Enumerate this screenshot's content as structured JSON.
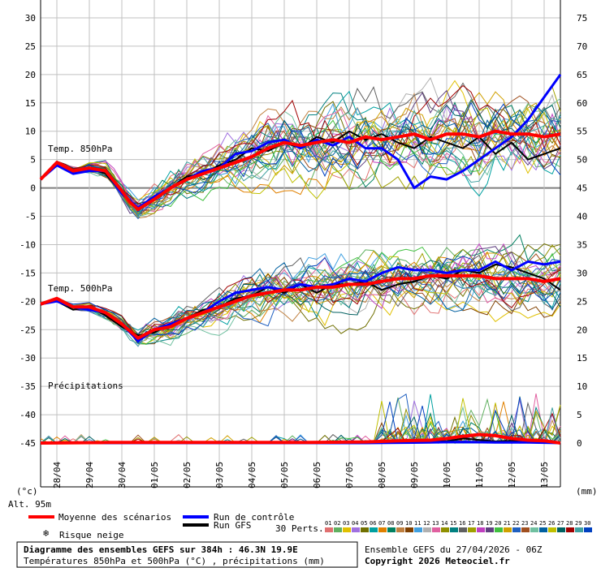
{
  "chart_data": {
    "type": "line",
    "title": "Diagramme des ensembles GEFS sur 384h : 46.3N 19.9E",
    "subtitle": "Températures 850hPa et 500hPa (°C) , précipitations (mm)",
    "run_info": "Ensemble GEFS du 27/04/2026 - 06Z",
    "copyright": "Copyright 2026 Meteociel.fr",
    "altitude": "Alt. 95m",
    "left_unit": "(°c)",
    "right_unit": "(mm)",
    "left_axis": {
      "ylim": [
        -45,
        30
      ],
      "ticks": [
        30,
        25,
        20,
        15,
        10,
        5,
        0,
        -5,
        -10,
        -15,
        -20,
        -25,
        -30,
        -35,
        -40,
        -45
      ]
    },
    "right_axis": {
      "ticks": [
        75,
        70,
        65,
        60,
        55,
        50,
        45,
        40,
        35,
        30,
        25,
        20,
        15,
        10,
        5,
        0
      ]
    },
    "x_axis": {
      "range": [
        0,
        384
      ],
      "ticks": [
        "28/04",
        "29/04",
        "30/04",
        "01/05",
        "02/05",
        "03/05",
        "04/05",
        "05/05",
        "06/05",
        "07/05",
        "08/05",
        "09/05",
        "10/05",
        "11/05",
        "12/05",
        "13/05"
      ]
    },
    "section_labels": {
      "t850": "Temp. 850hPa",
      "t500": "Temp. 500hPa",
      "precip": "Précipitations"
    },
    "legend": {
      "mean": "Moyenne des scénarios",
      "control": "Run de contrôle",
      "gfs": "Run GFS",
      "snow": "Risque neige",
      "perts_label": "30 Perts.",
      "pert_numbers": [
        "01",
        "02",
        "03",
        "04",
        "05",
        "06",
        "07",
        "08",
        "09",
        "10",
        "11",
        "12",
        "13",
        "14",
        "15",
        "16",
        "17",
        "18",
        "19",
        "20",
        "21",
        "22",
        "23",
        "24",
        "25",
        "26",
        "27",
        "28",
        "29",
        "30"
      ]
    },
    "colors": {
      "mean": "#ff0000",
      "control": "#0000ff",
      "gfs": "#000000",
      "grid": "#c0c0c0",
      "zero": "#808080",
      "perts": [
        "#e07070",
        "#60b060",
        "#e0c000",
        "#a070e0",
        "#707000",
        "#00a0a0",
        "#e08000",
        "#008060",
        "#c08040",
        "#804000",
        "#40a0e0",
        "#b0b0b0",
        "#e060a0",
        "#909000",
        "#008080",
        "#606060",
        "#a0a000",
        "#c040c0",
        "#604080",
        "#40c040",
        "#d0a000",
        "#2060c0",
        "#a05020",
        "#70c0a0",
        "#0060a0",
        "#c0c000",
        "#006060",
        "#a00000",
        "#40a0a0",
        "#0040c0"
      ]
    },
    "t850": {
      "mean": [
        [
          0,
          1.5
        ],
        [
          12,
          4.5
        ],
        [
          24,
          3
        ],
        [
          36,
          3.5
        ],
        [
          48,
          3
        ],
        [
          60,
          -0.5
        ],
        [
          66,
          -2.5
        ],
        [
          72,
          -3.8
        ],
        [
          84,
          -2
        ],
        [
          96,
          0
        ],
        [
          108,
          1.5
        ],
        [
          120,
          2.5
        ],
        [
          132,
          3.5
        ],
        [
          144,
          4.5
        ],
        [
          156,
          5.5
        ],
        [
          168,
          7
        ],
        [
          180,
          8
        ],
        [
          192,
          7.5
        ],
        [
          204,
          8
        ],
        [
          216,
          8.5
        ],
        [
          228,
          8
        ],
        [
          240,
          9
        ],
        [
          252,
          8.5
        ],
        [
          264,
          9
        ],
        [
          276,
          9.5
        ],
        [
          288,
          8.5
        ],
        [
          300,
          9.5
        ],
        [
          312,
          9.5
        ],
        [
          324,
          9
        ],
        [
          336,
          10
        ],
        [
          348,
          9.5
        ],
        [
          360,
          9.5
        ],
        [
          372,
          9
        ],
        [
          384,
          9.5
        ]
      ],
      "control": [
        [
          0,
          1.5
        ],
        [
          12,
          4
        ],
        [
          24,
          2.5
        ],
        [
          36,
          3
        ],
        [
          48,
          3
        ],
        [
          60,
          -1
        ],
        [
          72,
          -3.5
        ],
        [
          84,
          -1.5
        ],
        [
          96,
          0
        ],
        [
          108,
          1.5
        ],
        [
          120,
          3
        ],
        [
          132,
          3.5
        ],
        [
          144,
          6
        ],
        [
          156,
          6.5
        ],
        [
          168,
          8
        ],
        [
          180,
          8.5
        ],
        [
          192,
          7
        ],
        [
          204,
          8.5
        ],
        [
          216,
          7.5
        ],
        [
          228,
          9
        ],
        [
          240,
          7
        ],
        [
          252,
          7
        ],
        [
          264,
          5
        ],
        [
          276,
          0
        ],
        [
          288,
          2
        ],
        [
          300,
          1.5
        ],
        [
          312,
          3
        ],
        [
          324,
          5
        ],
        [
          336,
          7
        ],
        [
          348,
          9
        ],
        [
          360,
          12
        ],
        [
          372,
          16
        ],
        [
          384,
          20
        ]
      ],
      "gfs": [
        [
          0,
          1.5
        ],
        [
          12,
          4
        ],
        [
          24,
          3
        ],
        [
          36,
          3.5
        ],
        [
          48,
          2.5
        ],
        [
          60,
          -1
        ],
        [
          72,
          -3.5
        ],
        [
          84,
          -2
        ],
        [
          96,
          0
        ],
        [
          108,
          2
        ],
        [
          120,
          2.5
        ],
        [
          132,
          4
        ],
        [
          144,
          5
        ],
        [
          156,
          7
        ],
        [
          168,
          6.5
        ],
        [
          180,
          8
        ],
        [
          192,
          7
        ],
        [
          204,
          9
        ],
        [
          216,
          8
        ],
        [
          228,
          10
        ],
        [
          240,
          8.5
        ],
        [
          252,
          9.5
        ],
        [
          264,
          8
        ],
        [
          276,
          7
        ],
        [
          288,
          9
        ],
        [
          300,
          8
        ],
        [
          312,
          7
        ],
        [
          324,
          9
        ],
        [
          336,
          6
        ],
        [
          348,
          8
        ],
        [
          360,
          5
        ],
        [
          372,
          6
        ],
        [
          384,
          7
        ]
      ]
    },
    "t500": {
      "mean": [
        [
          0,
          -20.5
        ],
        [
          12,
          -19.5
        ],
        [
          24,
          -21
        ],
        [
          36,
          -21
        ],
        [
          48,
          -22
        ],
        [
          60,
          -24
        ],
        [
          72,
          -26.5
        ],
        [
          84,
          -25
        ],
        [
          96,
          -24.5
        ],
        [
          108,
          -23
        ],
        [
          120,
          -22
        ],
        [
          132,
          -21
        ],
        [
          144,
          -20
        ],
        [
          156,
          -19
        ],
        [
          168,
          -18.5
        ],
        [
          180,
          -18
        ],
        [
          192,
          -18
        ],
        [
          204,
          -17.5
        ],
        [
          216,
          -17.5
        ],
        [
          228,
          -17
        ],
        [
          240,
          -17
        ],
        [
          252,
          -16.5
        ],
        [
          264,
          -16
        ],
        [
          276,
          -16
        ],
        [
          288,
          -15.5
        ],
        [
          300,
          -15.5
        ],
        [
          312,
          -15.5
        ],
        [
          324,
          -15.5
        ],
        [
          336,
          -16
        ],
        [
          348,
          -16
        ],
        [
          360,
          -16
        ],
        [
          372,
          -16.5
        ],
        [
          384,
          -16
        ]
      ],
      "control": [
        [
          0,
          -20.5
        ],
        [
          12,
          -20
        ],
        [
          24,
          -21
        ],
        [
          36,
          -21.5
        ],
        [
          48,
          -22
        ],
        [
          60,
          -24
        ],
        [
          72,
          -27
        ],
        [
          84,
          -25
        ],
        [
          96,
          -24
        ],
        [
          108,
          -23
        ],
        [
          120,
          -22
        ],
        [
          132,
          -20
        ],
        [
          144,
          -18.5
        ],
        [
          156,
          -18
        ],
        [
          168,
          -17.5
        ],
        [
          180,
          -18
        ],
        [
          192,
          -17
        ],
        [
          204,
          -17.5
        ],
        [
          216,
          -17
        ],
        [
          228,
          -16
        ],
        [
          240,
          -16.5
        ],
        [
          252,
          -15
        ],
        [
          264,
          -14
        ],
        [
          276,
          -14.5
        ],
        [
          288,
          -14.5
        ],
        [
          300,
          -15
        ],
        [
          312,
          -14.5
        ],
        [
          324,
          -14.5
        ],
        [
          336,
          -13
        ],
        [
          348,
          -14.5
        ],
        [
          360,
          -13
        ],
        [
          372,
          -13.5
        ],
        [
          384,
          -13
        ]
      ],
      "gfs": [
        [
          0,
          -20.5
        ],
        [
          12,
          -20
        ],
        [
          24,
          -21.5
        ],
        [
          36,
          -21
        ],
        [
          48,
          -22.5
        ],
        [
          60,
          -24.5
        ],
        [
          72,
          -26
        ],
        [
          84,
          -25.5
        ],
        [
          96,
          -24
        ],
        [
          108,
          -23
        ],
        [
          120,
          -21.5
        ],
        [
          132,
          -21
        ],
        [
          144,
          -19.5
        ],
        [
          156,
          -19
        ],
        [
          168,
          -17.5
        ],
        [
          180,
          -18.5
        ],
        [
          192,
          -17
        ],
        [
          204,
          -18.5
        ],
        [
          216,
          -17
        ],
        [
          228,
          -17
        ],
        [
          240,
          -16.5
        ],
        [
          252,
          -18
        ],
        [
          264,
          -17
        ],
        [
          276,
          -16.5
        ],
        [
          288,
          -15.5
        ],
        [
          300,
          -16
        ],
        [
          312,
          -14.5
        ],
        [
          324,
          -15
        ],
        [
          336,
          -13.5
        ],
        [
          348,
          -14
        ],
        [
          360,
          -15
        ],
        [
          372,
          -16
        ],
        [
          384,
          -18
        ]
      ]
    },
    "precip_mm": {
      "mean": [
        [
          0,
          0
        ],
        [
          48,
          0.1
        ],
        [
          96,
          0.1
        ],
        [
          144,
          0.1
        ],
        [
          192,
          0.1
        ],
        [
          240,
          0.2
        ],
        [
          264,
          0.4
        ],
        [
          288,
          0.5
        ],
        [
          300,
          0.8
        ],
        [
          312,
          1.2
        ],
        [
          324,
          1.5
        ],
        [
          336,
          1.3
        ],
        [
          348,
          0.8
        ],
        [
          360,
          0.5
        ],
        [
          372,
          0.4
        ],
        [
          384,
          0
        ]
      ],
      "control": [
        [
          0,
          0
        ],
        [
          96,
          0
        ],
        [
          192,
          0
        ],
        [
          240,
          0
        ],
        [
          288,
          0.1
        ],
        [
          312,
          0.2
        ],
        [
          336,
          0.1
        ],
        [
          360,
          0.1
        ],
        [
          384,
          0
        ]
      ],
      "gfs": [
        [
          0,
          0
        ],
        [
          96,
          0
        ],
        [
          192,
          0
        ],
        [
          240,
          0.2
        ],
        [
          276,
          0.5
        ],
        [
          300,
          0.3
        ],
        [
          312,
          0.8
        ],
        [
          336,
          0.3
        ],
        [
          360,
          0.5
        ],
        [
          372,
          0.4
        ],
        [
          384,
          0
        ]
      ]
    },
    "perturbation_count": 30
  }
}
